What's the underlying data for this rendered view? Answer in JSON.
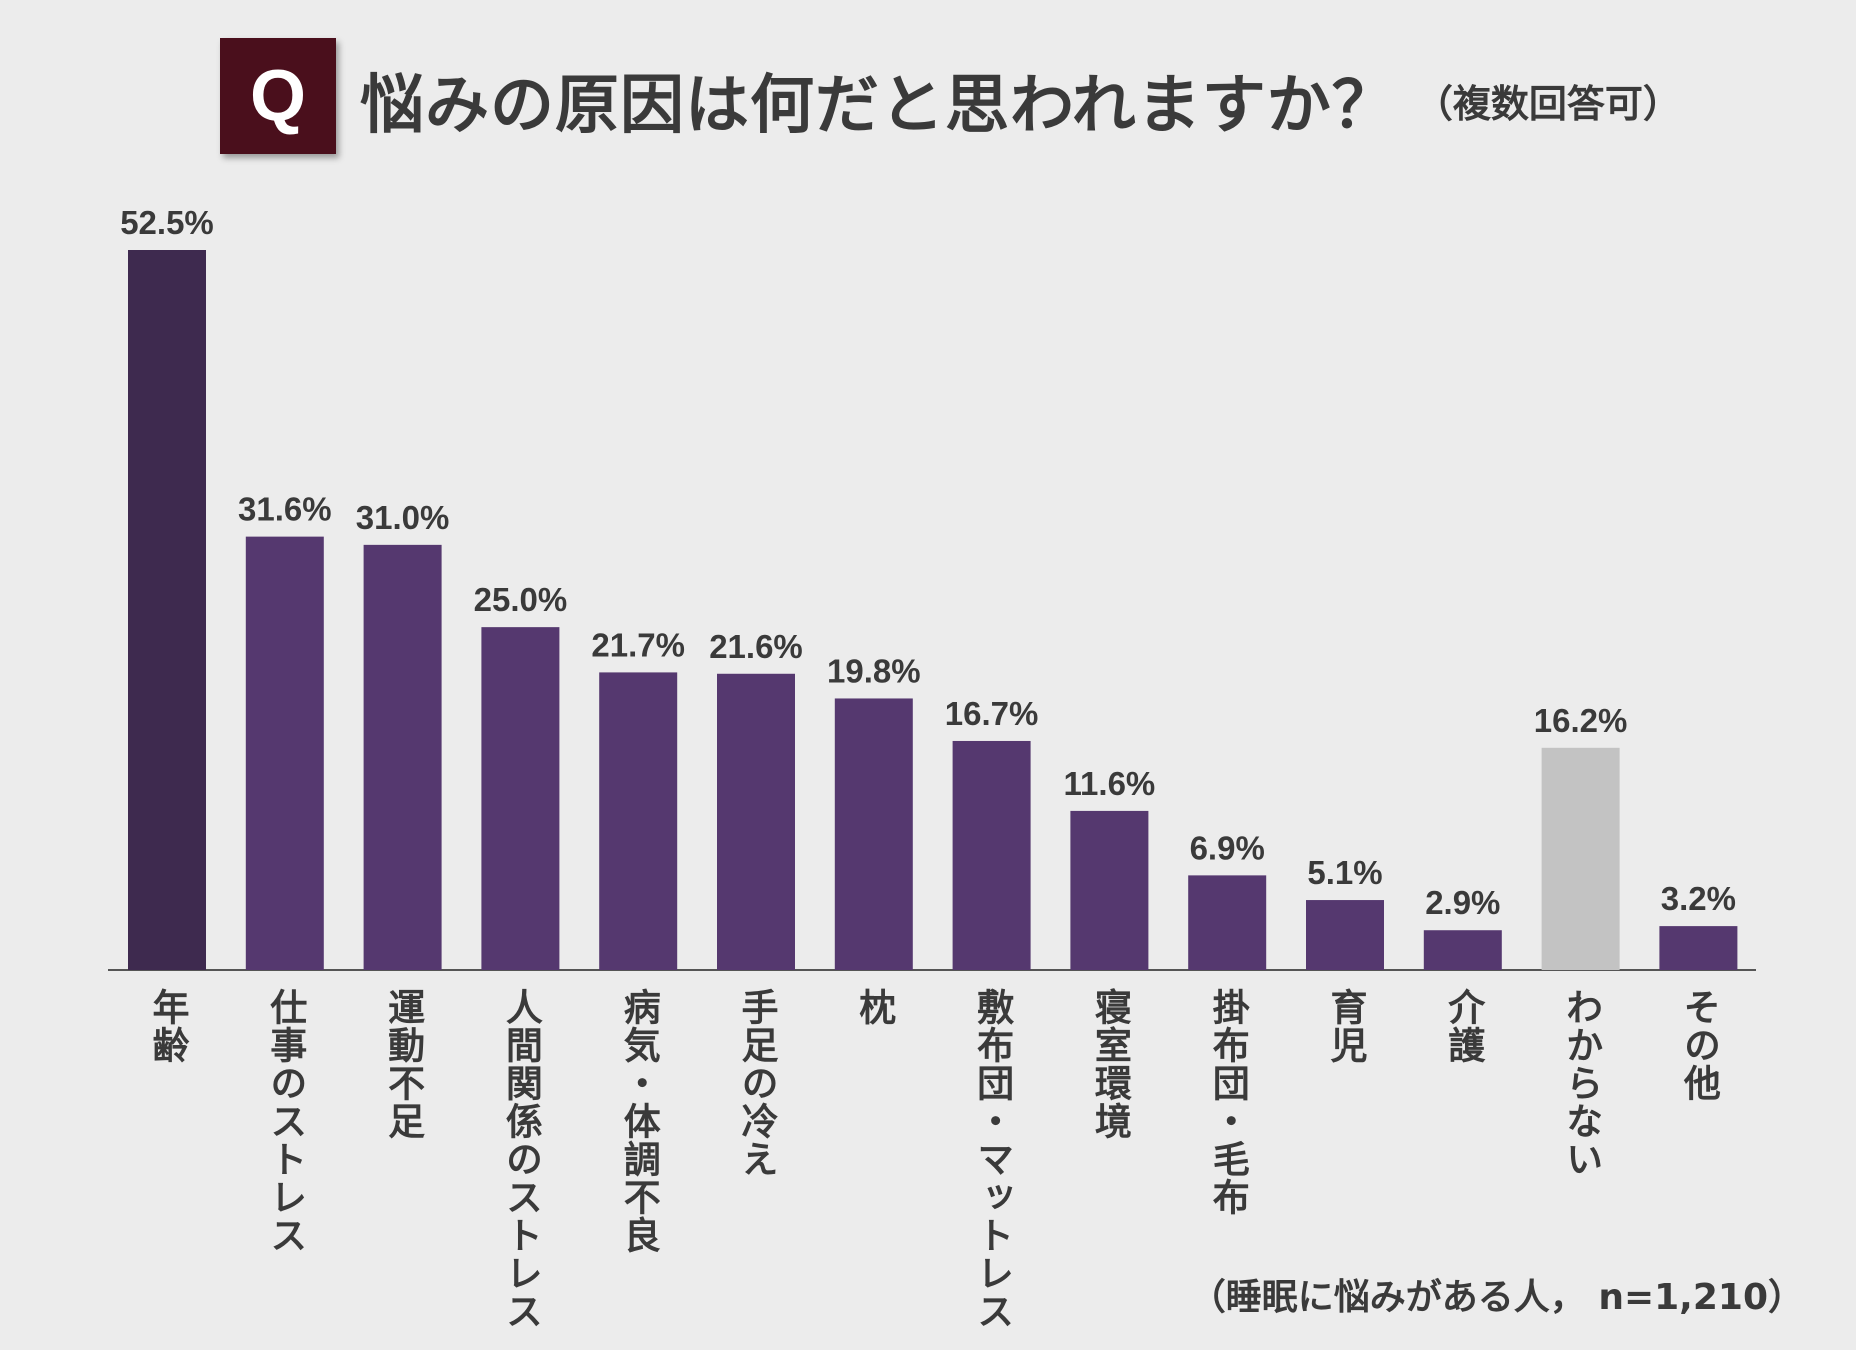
{
  "header": {
    "badge": "Q",
    "title": "悩みの原因は何だと思われますか？",
    "subtitle": "（複数回答可）"
  },
  "colors": {
    "first_bar": "#3e2a4f",
    "bar": "#55386f",
    "unknown_bar": "#c3c3c3",
    "axis": "#555555"
  },
  "chart_data": {
    "type": "bar",
    "title": "悩みの原因は何だと思われますか？",
    "categories": [
      "年齢",
      "仕事のストレス",
      "運動不足",
      "人間関係のストレス",
      "病気・体調不良",
      "手足の冷え",
      "枕",
      "敷布団・マットレス",
      "寝室環境",
      "掛布団・毛布",
      "育児",
      "介護",
      "わからない",
      "その他"
    ],
    "values": [
      52.5,
      31.6,
      31.0,
      25.0,
      21.7,
      21.6,
      19.8,
      16.7,
      11.6,
      6.9,
      5.1,
      2.9,
      16.2,
      3.2
    ],
    "value_labels": [
      "52.5%",
      "31.6%",
      "31.0%",
      "25.0%",
      "21.7%",
      "21.6%",
      "19.8%",
      "16.7%",
      "11.6%",
      "6.9%",
      "5.1%",
      "2.9%",
      "16.2%",
      "3.2%"
    ],
    "unit": "%",
    "ylim": [
      0,
      52.5
    ],
    "xlabel": "",
    "ylabel": "",
    "grid": false
  },
  "footnote": "（睡眠に悩みがある人， n=1,210）"
}
